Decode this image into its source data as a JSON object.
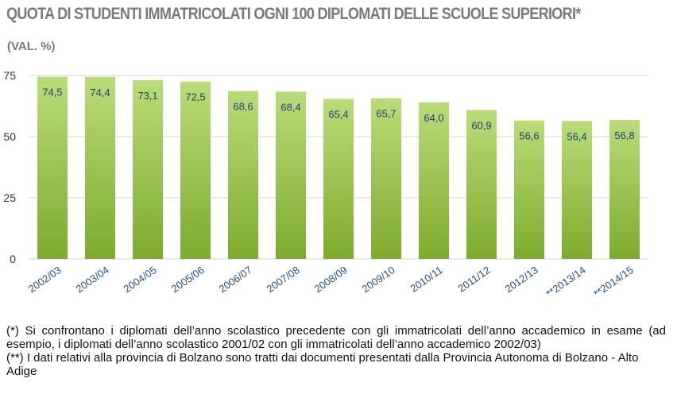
{
  "title": "QUOTA DI STUDENTI IMMATRICOLATI OGNI 100 DIPLOMATI DELLE SCUOLE SUPERIORI*",
  "subtitle": "(VAL. %)",
  "footnotes": {
    "note1": "(*) Si confrontano i diplomati dell’anno scolastico precedente con gli immatricolati dell’anno accademico in esame (ad esempio, i diplomati dell’anno scolastico 2001/02 con gli immatricolati dell’anno accademico 2002/03)",
    "note2": "(**) I dati relativi alla provincia di Bolzano sono tratti dai documenti presentati dalla Provincia Autonoma di Bolzano - Alto Adige"
  },
  "colors": {
    "bar_light": "#b9dc78",
    "bar_dark": "#7dab2e",
    "value_label": "#1f3f78",
    "tick_label": "#1f4e96",
    "title": "#7a7a7a",
    "grid": "#d6d6d6"
  },
  "chart_data": {
    "type": "bar",
    "categories": [
      "2002/03",
      "2003/04",
      "2004/05",
      "2005/06",
      "2006/07",
      "2007/08",
      "2008/09",
      "2009/10",
      "2010/11",
      "2011/12",
      "2012/13",
      "**2013/14",
      "**2014/15"
    ],
    "values": [
      74.5,
      74.4,
      73.1,
      72.5,
      68.6,
      68.4,
      65.4,
      65.7,
      64.0,
      60.9,
      56.6,
      56.4,
      56.8
    ],
    "value_labels": [
      "74,5",
      "74,4",
      "73,1",
      "72,5",
      "68,6",
      "68,4",
      "65,4",
      "65,7",
      "64,0",
      "60,9",
      "56,6",
      "56,4",
      "56,8"
    ],
    "yticks": [
      0,
      25,
      50,
      75
    ],
    "ylim": [
      0,
      77
    ],
    "grid": true,
    "title": "QUOTA DI STUDENTI IMMATRICOLATI OGNI 100 DIPLOMATI DELLE SCUOLE SUPERIORI*",
    "xlabel": "",
    "ylabel": ""
  }
}
